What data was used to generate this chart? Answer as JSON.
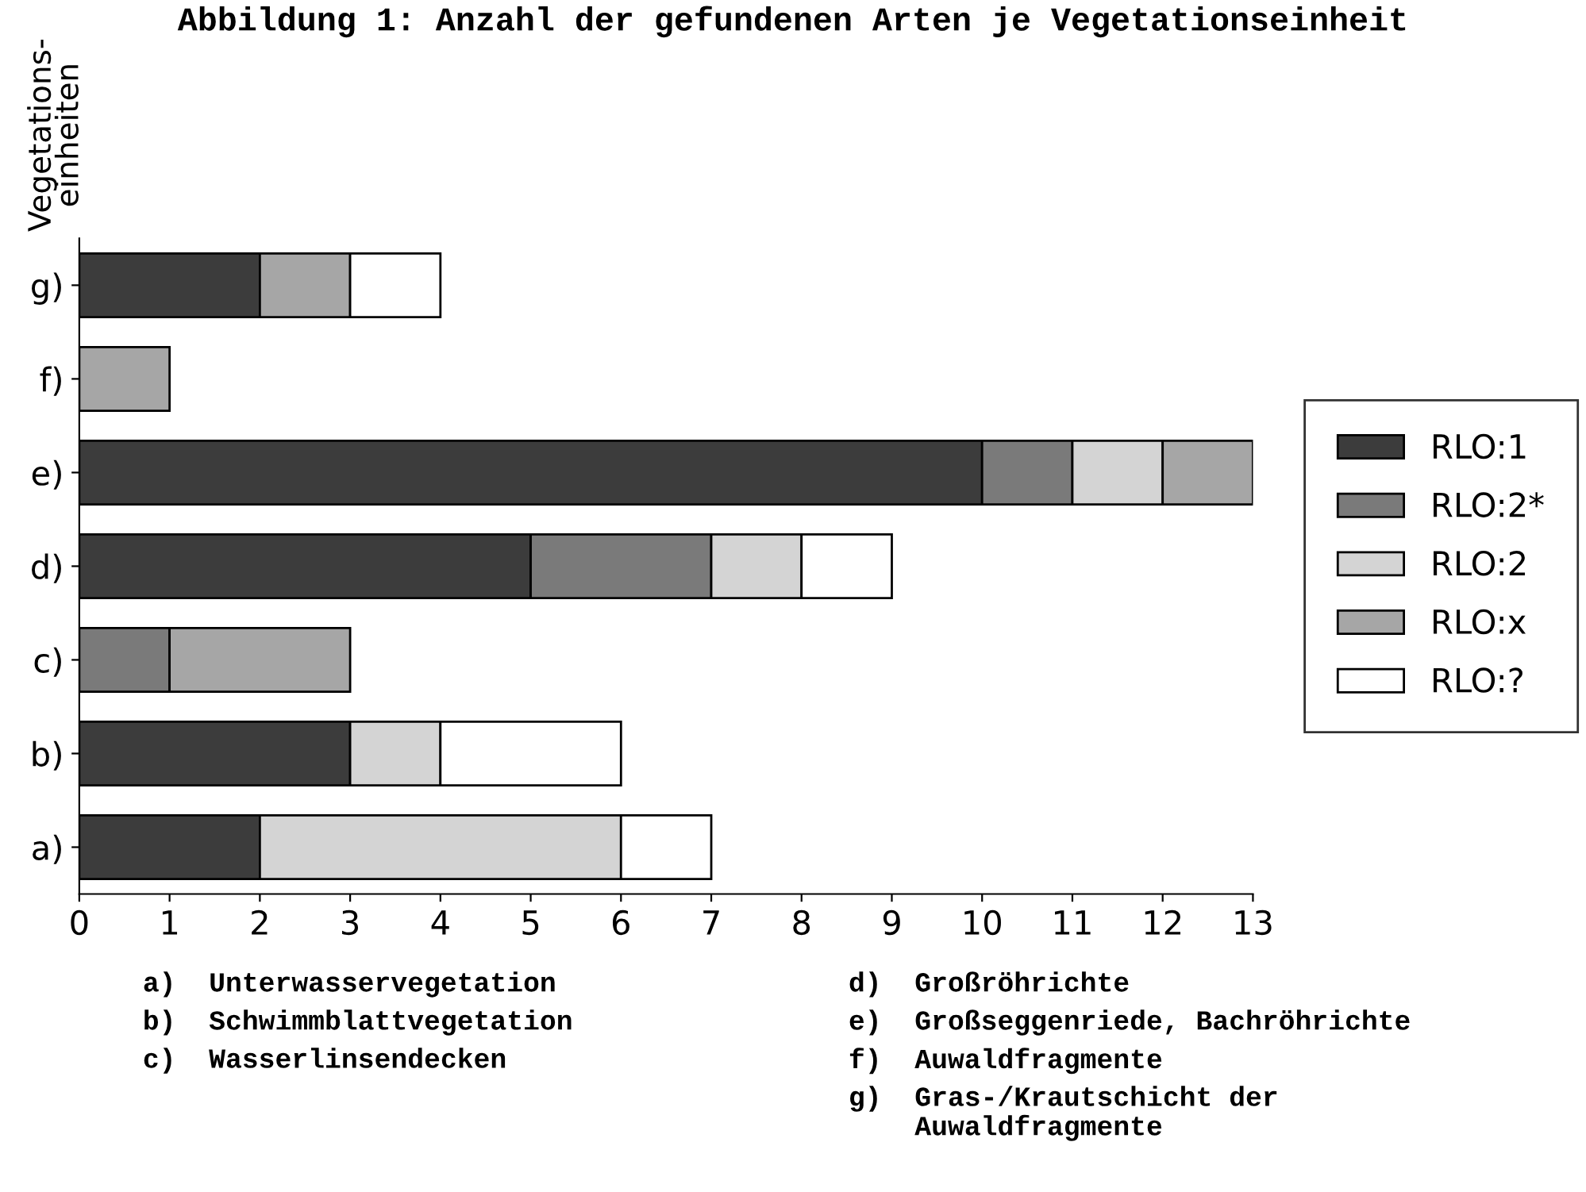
{
  "chart_data": {
    "type": "bar",
    "orientation": "horizontal",
    "stacked": true,
    "title": "Abbildung 1: Anzahl der gefundenen Arten je Vegetationseinheit",
    "ylabel": "Vegetations-\neinheiten",
    "categories": [
      "g)",
      "f)",
      "e)",
      "d)",
      "c)",
      "b)",
      "a)"
    ],
    "series": [
      {
        "name": "RLO:1",
        "color": "#3c3c3c",
        "values": [
          2,
          null,
          10,
          5,
          null,
          3,
          2
        ]
      },
      {
        "name": "RLO:2*",
        "color": "#7a7a7a",
        "values": [
          null,
          null,
          1,
          2,
          1,
          null,
          null
        ]
      },
      {
        "name": "RLO:2",
        "color": "#d4d4d4",
        "values": [
          null,
          null,
          1,
          1,
          null,
          1,
          4
        ]
      },
      {
        "name": "RLO:x",
        "color": "#a6a6a6",
        "values": [
          1,
          1,
          1,
          null,
          2,
          null,
          null
        ]
      },
      {
        "name": "RLO:?",
        "color": "#ffffff",
        "values": [
          1,
          null,
          null,
          1,
          null,
          2,
          1
        ]
      }
    ],
    "xlim": [
      0,
      13
    ],
    "xticks": [
      0,
      1,
      2,
      3,
      4,
      5,
      6,
      7,
      8,
      9,
      10,
      11,
      12,
      13
    ],
    "grid": false,
    "legend": "right",
    "annotations": [
      "a)  Unterwasservegetation",
      "b)  Schwimmblattvegetation",
      "c)  Wasserlinsendecken",
      "d)  Großröhrichte",
      "e)  Großseggenriede, Bachröhrichte",
      "f)  Auwaldfragmente",
      "g)  Gras-/Krautschicht der\n    Auwaldfragmente"
    ]
  }
}
